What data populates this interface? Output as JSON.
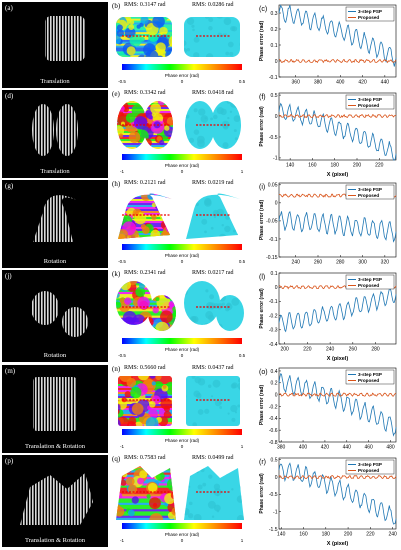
{
  "rows": [
    {
      "photo_label": "(a)",
      "photo_caption": "Translation",
      "phase_label": "(b)",
      "rms_left": "RMS: 0.3147 rad",
      "rms_right": "RMS: 0.0286 rad",
      "colorbar_title": "Phase error (rad)",
      "cb_ticks": [
        "-0.5",
        "0",
        "0.5"
      ],
      "err_label": "(c)",
      "xticks": [
        "360",
        "380",
        "400",
        "420",
        "440"
      ],
      "xtick_vals": [
        360,
        380,
        400,
        420,
        440
      ],
      "yticks": [
        "0.3",
        "0.2",
        "0.1",
        "0",
        "-0.1"
      ],
      "ytick_vals": [
        0.3,
        0.2,
        0.1,
        0,
        -0.1
      ],
      "ylim": [
        -0.1,
        0.35
      ],
      "xlim": [
        345,
        450
      ],
      "show_xlabel": false
    },
    {
      "photo_label": "(d)",
      "photo_caption": "Translation",
      "phase_label": "(e)",
      "rms_left": "RMS: 0.3342 rad",
      "rms_right": "RMS: 0.0418 rad",
      "colorbar_title": "Phase error (rad)",
      "cb_ticks": [
        "-1",
        "0",
        "1"
      ],
      "err_label": "(f)",
      "xticks": [
        "140",
        "160",
        "180",
        "200",
        "220"
      ],
      "xtick_vals": [
        140,
        160,
        180,
        200,
        220
      ],
      "yticks": [
        "0.5",
        "0",
        "-0.5",
        "-1"
      ],
      "ytick_vals": [
        0.5,
        0,
        -0.5,
        -1
      ],
      "ylim": [
        -1.05,
        0.55
      ],
      "xlim": [
        130,
        235
      ],
      "show_xlabel": true
    },
    {
      "photo_label": "(g)",
      "photo_caption": "Rotation",
      "phase_label": "(h)",
      "rms_left": "RMS: 0.2121 rad",
      "rms_right": "RMS: 0.0219 rad",
      "colorbar_title": "Phase error (rad)",
      "cb_ticks": [
        "-0.5",
        "0",
        "0.5"
      ],
      "err_label": "(i)",
      "xticks": [
        "240",
        "260",
        "280",
        "300",
        "320"
      ],
      "xtick_vals": [
        240,
        260,
        280,
        300,
        320
      ],
      "yticks": [
        "0.05",
        "0",
        "-0.05",
        "-0.1",
        "-0.15"
      ],
      "ytick_vals": [
        0.05,
        0,
        -0.05,
        -0.1,
        -0.15
      ],
      "ylim": [
        -0.15,
        0.055
      ],
      "xlim": [
        225,
        330
      ],
      "show_xlabel": false
    },
    {
      "photo_label": "(j)",
      "photo_caption": "Rotation",
      "phase_label": "(k)",
      "rms_left": "RMS: 0.2341 rad",
      "rms_right": "RMS: 0.0217 rad",
      "colorbar_title": "Phase error (rad)",
      "cb_ticks": [
        "-0.5",
        "0",
        "0.5"
      ],
      "err_label": "(l)",
      "xticks": [
        "200",
        "220",
        "240",
        "260",
        "280"
      ],
      "xtick_vals": [
        200,
        220,
        240,
        260,
        280
      ],
      "yticks": [
        "0.1",
        "0",
        "-0.1",
        "-0.2",
        "-0.3",
        "-0.4"
      ],
      "ytick_vals": [
        0.1,
        0,
        -0.1,
        -0.2,
        -0.3,
        -0.4
      ],
      "ylim": [
        -0.4,
        0.1
      ],
      "xlim": [
        195,
        298
      ],
      "show_xlabel": true
    },
    {
      "photo_label": "(m)",
      "photo_caption": "Translation & Rotation",
      "phase_label": "(n)",
      "rms_left": "RMS: 0.5660 rad",
      "rms_right": "RMS: 0.0437 rad",
      "colorbar_title": "Phase error (rad)",
      "cb_ticks": [
        "-1",
        "0",
        "1"
      ],
      "err_label": "(o)",
      "xticks": [
        "380",
        "400",
        "420",
        "440",
        "460",
        "480"
      ],
      "xtick_vals": [
        380,
        400,
        420,
        440,
        460,
        480
      ],
      "yticks": [
        "0.4",
        "0.2",
        "0",
        "-0.2",
        "-0.4",
        "-0.6",
        "-0.8"
      ],
      "ytick_vals": [
        0.4,
        0.2,
        0,
        -0.2,
        -0.4,
        -0.6,
        -0.8
      ],
      "ylim": [
        -0.8,
        0.45
      ],
      "xlim": [
        378,
        485
      ],
      "show_xlabel": false
    },
    {
      "photo_label": "(p)",
      "photo_caption": "Translation & Rotation",
      "phase_label": "(q)",
      "rms_left": "RMS: 0.7583 rad",
      "rms_right": "RMS: 0.0499 rad",
      "colorbar_title": "Phase error (rad)",
      "cb_ticks": [
        "-1",
        "0",
        "1"
      ],
      "err_label": "(r)",
      "xticks": [
        "140",
        "160",
        "180",
        "200",
        "220",
        "240"
      ],
      "xtick_vals": [
        140,
        160,
        180,
        200,
        220,
        240
      ],
      "yticks": [
        "0.5",
        "0",
        "-0.5",
        "-1",
        "-1.5"
      ],
      "ytick_vals": [
        0.5,
        0,
        -0.5,
        -1,
        -1.5
      ],
      "ylim": [
        -1.5,
        0.55
      ],
      "xlim": [
        138,
        243
      ],
      "show_xlabel": true
    }
  ],
  "legend": {
    "series_1": "3-step PSP",
    "series_2": "Proposed"
  },
  "axis": {
    "ylabel": "Phase error (rad)",
    "xlabel": "X (pixel)"
  },
  "colors": {
    "psp": "#1f77b4",
    "proposed": "#d95319"
  },
  "chart_data": [
    {
      "type": "line",
      "title": "",
      "xlabel": "",
      "ylabel": "Phase error (rad)",
      "xlim": [
        345,
        450
      ],
      "ylim": [
        -0.1,
        0.35
      ],
      "series": [
        {
          "name": "3-step PSP",
          "description_values": {
            "start": 0.3,
            "end": 0.02
          }
        },
        {
          "name": "Proposed",
          "approx_level": 0.0
        }
      ]
    },
    {
      "type": "line",
      "title": "",
      "xlabel": "X (pixel)",
      "ylabel": "Phase error (rad)",
      "xlim": [
        130,
        235
      ],
      "ylim": [
        -1.05,
        0.55
      ],
      "series": [
        {
          "name": "3-step PSP",
          "description_values": {
            "start": 0.1,
            "end": -0.9
          }
        },
        {
          "name": "Proposed",
          "approx_level": 0.0
        }
      ]
    },
    {
      "type": "line",
      "title": "",
      "xlabel": "",
      "ylabel": "Phase error (rad)",
      "xlim": [
        225,
        330
      ],
      "ylim": [
        -0.15,
        0.055
      ],
      "series": [
        {
          "name": "3-step PSP",
          "description_values": {
            "start": -0.05,
            "end": -0.08
          }
        },
        {
          "name": "Proposed",
          "approx_level": 0.02
        }
      ]
    },
    {
      "type": "line",
      "title": "",
      "xlabel": "X (pixel)",
      "ylabel": "Phase error (rad)",
      "xlim": [
        195,
        298
      ],
      "ylim": [
        -0.4,
        0.1
      ],
      "series": [
        {
          "name": "3-step PSP",
          "description_values": {
            "start": -0.25,
            "end": -0.05
          }
        },
        {
          "name": "Proposed",
          "approx_level": 0.0
        }
      ]
    },
    {
      "type": "line",
      "title": "",
      "xlabel": "",
      "ylabel": "Phase error (rad)",
      "xlim": [
        378,
        485
      ],
      "ylim": [
        -0.8,
        0.45
      ],
      "series": [
        {
          "name": "3-step PSP",
          "description_values": {
            "start": 0.2,
            "end": -0.55
          }
        },
        {
          "name": "Proposed",
          "approx_level": 0.0
        }
      ]
    },
    {
      "type": "line",
      "title": "",
      "xlabel": "X (pixel)",
      "ylabel": "Phase error (rad)",
      "xlim": [
        138,
        243
      ],
      "ylim": [
        -1.5,
        0.55
      ],
      "series": [
        {
          "name": "3-step PSP",
          "description_values": {
            "start": 0.2,
            "end": -1.2
          }
        },
        {
          "name": "Proposed",
          "approx_level": 0.0
        }
      ]
    }
  ]
}
